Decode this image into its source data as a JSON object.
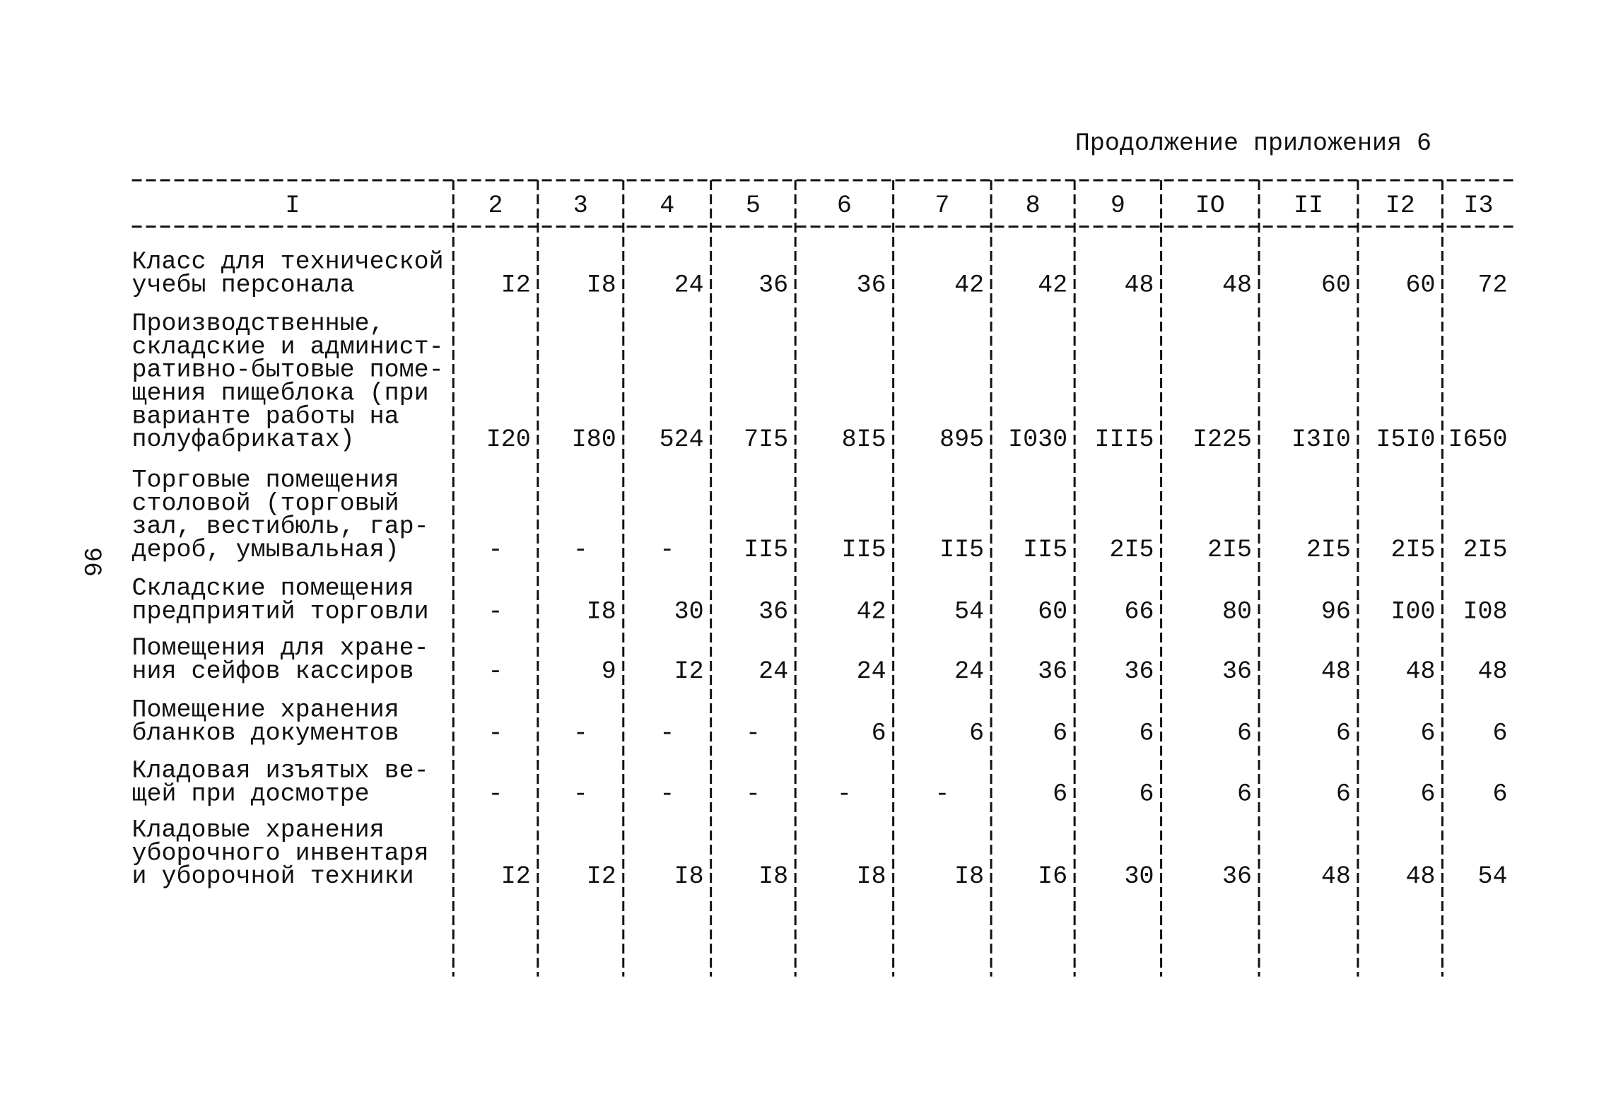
{
  "header": {
    "title": "Продолжение приложения 6",
    "page_number": "96"
  },
  "table": {
    "columns": [
      "I",
      "2",
      "3",
      "4",
      "5",
      "6",
      "7",
      "8",
      "9",
      "IO",
      "II",
      "I2",
      "I3"
    ],
    "rows": [
      {
        "label": [
          "Класс для технической",
          "учебы персонала"
        ],
        "values": [
          "I2",
          "I8",
          "24",
          "36",
          "36",
          "42",
          "42",
          "48",
          "48",
          "60",
          "60",
          "72"
        ]
      },
      {
        "label": [
          "Производственные,",
          "складские и админист-",
          "ративно-бытовые поме-",
          "щения пищеблока (при",
          "варианте работы на",
          "полуфабрикатах)"
        ],
        "values": [
          "I20",
          "I80",
          "524",
          "7I5",
          "8I5",
          "895",
          "I030",
          "III5",
          "I225",
          "I3I0",
          "I5I0",
          "I650"
        ]
      },
      {
        "label": [
          "Торговые помещения",
          "столовой (торговый",
          "зал, вестибюль, гар-",
          "дероб, умывальная)"
        ],
        "values": [
          "-",
          "-",
          "-",
          "II5",
          "II5",
          "II5",
          "II5",
          "2I5",
          "2I5",
          "2I5",
          "2I5",
          "2I5"
        ]
      },
      {
        "label": [
          "Складские помещения",
          "предприятий торговли"
        ],
        "values": [
          "-",
          "I8",
          "30",
          "36",
          "42",
          "54",
          "60",
          "66",
          "80",
          "96",
          "I00",
          "I08"
        ]
      },
      {
        "label": [
          "Помещения для хране-",
          "ния сейфов кассиров"
        ],
        "values": [
          "-",
          "9",
          "I2",
          "24",
          "24",
          "24",
          "36",
          "36",
          "36",
          "48",
          "48",
          "48"
        ]
      },
      {
        "label": [
          "Помещение хранения",
          "бланков документов"
        ],
        "values": [
          "-",
          "-",
          "-",
          "-",
          "6",
          "6",
          "6",
          "6",
          "6",
          "6",
          "6",
          "6"
        ]
      },
      {
        "label": [
          "Кладовая изъятых ве-",
          "щей при досмотре"
        ],
        "values": [
          "-",
          "-",
          "-",
          "-",
          "-",
          "-",
          "6",
          "6",
          "6",
          "6",
          "6",
          "6"
        ]
      },
      {
        "label": [
          "Кладовые хранения",
          "уборочного инвентаря",
          "и уборочной техники"
        ],
        "values": [
          "I2",
          "I2",
          "I8",
          "I8",
          "I8",
          "I8",
          "I6",
          "30",
          "36",
          "48",
          "48",
          "54"
        ]
      }
    ]
  }
}
